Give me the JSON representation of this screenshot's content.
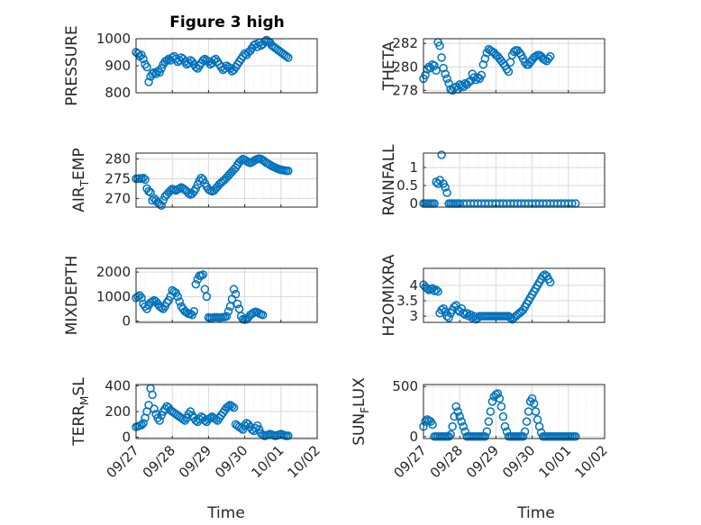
{
  "figure_title": "Figure 3 high",
  "chart_data": [
    {
      "type": "scatter",
      "ylabel": "PRESSURE",
      "title": "Figure 3 high",
      "ylim": [
        800,
        1000
      ],
      "yticks": [
        "1000",
        "900",
        "800"
      ],
      "ytick_values": [
        1000,
        900,
        800
      ],
      "x": [
        0,
        0.05,
        0.1,
        0.15,
        0.2,
        0.25,
        0.3,
        0.35,
        0.4,
        0.45,
        0.5,
        0.55,
        0.6,
        0.65,
        0.7,
        0.75,
        0.8,
        0.85,
        0.9,
        0.95,
        1,
        1.05,
        1.1,
        1.15,
        1.2,
        1.25,
        1.3,
        1.35,
        1.4,
        1.45,
        1.5,
        1.55,
        1.6,
        1.65,
        1.7,
        1.75,
        1.8,
        1.85,
        1.9,
        1.95,
        2,
        2.05,
        2.1,
        2.15,
        2.2,
        2.25,
        2.3,
        2.35,
        2.4,
        2.45,
        2.5,
        2.55,
        2.6,
        2.65,
        2.7,
        2.75,
        2.8,
        2.85,
        2.9,
        2.95,
        3,
        3.05,
        3.1,
        3.15,
        3.2,
        3.25,
        3.3,
        3.35,
        3.4,
        3.45,
        3.5,
        3.55,
        3.6,
        3.65,
        3.7,
        3.75,
        3.8,
        3.85,
        3.9,
        3.95,
        4,
        4.05,
        4.1,
        4.15,
        4.2
      ],
      "y": [
        950,
        945,
        935,
        940,
        925,
        905,
        895,
        840,
        860,
        870,
        875,
        870,
        880,
        875,
        890,
        905,
        915,
        920,
        925,
        920,
        930,
        935,
        925,
        915,
        920,
        930,
        925,
        915,
        905,
        910,
        920,
        915,
        905,
        895,
        890,
        900,
        910,
        920,
        925,
        920,
        915,
        905,
        910,
        920,
        925,
        915,
        905,
        895,
        885,
        890,
        900,
        895,
        890,
        880,
        885,
        895,
        905,
        915,
        925,
        935,
        945,
        940,
        950,
        955,
        965,
        975,
        980,
        970,
        985,
        975,
        980,
        990,
        995,
        990,
        985,
        975,
        970,
        965,
        960,
        955,
        950,
        945,
        940,
        935,
        930
      ]
    },
    {
      "type": "scatter",
      "ylabel": "THETA",
      "ylim": [
        277.8,
        282.4
      ],
      "yticks": [
        "282",
        "280",
        "278"
      ],
      "ytick_values": [
        282,
        280,
        278
      ],
      "x": [
        0,
        0.05,
        0.1,
        0.15,
        0.2,
        0.25,
        0.3,
        0.35,
        0.4,
        0.45,
        0.5,
        0.55,
        0.6,
        0.65,
        0.7,
        0.75,
        0.8,
        0.85,
        0.9,
        0.95,
        1,
        1.05,
        1.1,
        1.15,
        1.2,
        1.25,
        1.3,
        1.35,
        1.4,
        1.45,
        1.5,
        1.55,
        1.6,
        1.65,
        1.7,
        1.75,
        1.8,
        1.85,
        1.9,
        1.95,
        2,
        2.05,
        2.1,
        2.15,
        2.2,
        2.25,
        2.3,
        2.35,
        2.4,
        2.45,
        2.5,
        2.55,
        2.6,
        2.65,
        2.7,
        2.75,
        2.8,
        2.85,
        2.9,
        2.95,
        3,
        3.05,
        3.1,
        3.15,
        3.2,
        3.25,
        3.3,
        3.35,
        3.4,
        3.45,
        3.5
      ],
      "y": [
        279,
        279.3,
        279.8,
        280,
        279.9,
        280.2,
        280.1,
        279.7,
        282.1,
        281.8,
        280.8,
        279.9,
        279.4,
        279,
        278.6,
        278.1,
        278,
        278.2,
        278.3,
        278.1,
        278.5,
        278.4,
        278.3,
        278.6,
        278.5,
        278.7,
        278.8,
        279.4,
        279.1,
        278.9,
        279.1,
        279,
        279.3,
        280.2,
        280.7,
        281.2,
        281.5,
        281.4,
        281.3,
        281.2,
        281,
        280.9,
        280.7,
        280.5,
        280.3,
        280.1,
        279.8,
        279.6,
        280.4,
        281,
        281.3,
        281.4,
        281.4,
        281.2,
        281,
        280.7,
        280.4,
        280.2,
        280.2,
        280.4,
        280.6,
        280.8,
        280.9,
        281,
        281,
        280.9,
        280.7,
        280.6,
        280.5,
        280.7,
        280.9
      ]
    },
    {
      "type": "scatter",
      "ylabel": "AIRTEMP",
      "ylim": [
        267.8,
        281.5
      ],
      "yticks": [
        "280",
        "275",
        "270"
      ],
      "ytick_values": [
        280,
        275,
        270
      ],
      "x": [
        0,
        0.05,
        0.1,
        0.15,
        0.2,
        0.25,
        0.3,
        0.35,
        0.4,
        0.45,
        0.5,
        0.55,
        0.6,
        0.65,
        0.7,
        0.75,
        0.8,
        0.85,
        0.9,
        0.95,
        1,
        1.05,
        1.1,
        1.15,
        1.2,
        1.25,
        1.3,
        1.35,
        1.4,
        1.45,
        1.5,
        1.55,
        1.6,
        1.65,
        1.7,
        1.75,
        1.8,
        1.85,
        1.9,
        1.95,
        2,
        2.05,
        2.1,
        2.15,
        2.2,
        2.25,
        2.3,
        2.35,
        2.4,
        2.45,
        2.5,
        2.55,
        2.6,
        2.65,
        2.7,
        2.75,
        2.8,
        2.85,
        2.9,
        2.95,
        3,
        3.05,
        3.1,
        3.15,
        3.2,
        3.25,
        3.3,
        3.35,
        3.4,
        3.45,
        3.5,
        3.55,
        3.6,
        3.65,
        3.7,
        3.75,
        3.8,
        3.85,
        3.9,
        3.95,
        4,
        4.05,
        4.1,
        4.15,
        4.2
      ],
      "y": [
        275,
        275,
        275.1,
        275,
        275.2,
        274.8,
        272.5,
        271.8,
        271.5,
        269.5,
        270,
        269.5,
        269,
        268.6,
        268.2,
        269.5,
        270.5,
        271,
        271.5,
        272,
        272.4,
        272.2,
        272,
        272.3,
        272.5,
        272.8,
        272.5,
        272.2,
        271.8,
        271.3,
        271,
        271.2,
        271.8,
        272.5,
        273.5,
        274.5,
        275.2,
        274.8,
        273.8,
        273,
        272.3,
        272,
        271.8,
        272,
        272.5,
        273,
        273.6,
        274,
        274.4,
        274.8,
        275.3,
        275.8,
        276.3,
        276.8,
        277.3,
        277.8,
        278.5,
        279.2,
        279.6,
        280,
        279.8,
        279.5,
        279.2,
        279,
        279.2,
        279.5,
        279.8,
        280,
        280.1,
        280,
        279.7,
        279.4,
        279,
        278.8,
        278.5,
        278.2,
        278,
        277.8,
        277.6,
        277.4,
        277.3,
        277.2,
        277.1,
        277,
        277
      ]
    },
    {
      "type": "scatter",
      "ylabel": "RAINFALL",
      "ylim": [
        -0.1,
        1.4
      ],
      "yticks": [
        "1",
        "0.5",
        "0"
      ],
      "ytick_values": [
        1,
        0.5,
        0
      ],
      "x": [
        0,
        0.05,
        0.1,
        0.15,
        0.2,
        0.25,
        0.3,
        0.35,
        0.4,
        0.45,
        0.5,
        0.55,
        0.6,
        0.65,
        0.7,
        0.75,
        0.8,
        0.85,
        0.9,
        0.95,
        1,
        1.1,
        1.2,
        1.3,
        1.4,
        1.5,
        1.6,
        1.7,
        1.8,
        1.9,
        2,
        2.1,
        2.2,
        2.3,
        2.4,
        2.5,
        2.6,
        2.7,
        2.8,
        2.9,
        3,
        3.1,
        3.2,
        3.3,
        3.4,
        3.5,
        3.6,
        3.7,
        3.8,
        3.9,
        4,
        4.1,
        4.2
      ],
      "y": [
        0,
        0,
        0,
        0,
        0,
        0,
        0,
        0.6,
        0.55,
        0.65,
        1.35,
        0.55,
        0.45,
        0.3,
        0,
        0,
        0,
        0,
        0,
        0,
        0,
        0,
        0,
        0,
        0,
        0,
        0,
        0,
        0,
        0,
        0,
        0,
        0,
        0,
        0,
        0,
        0,
        0,
        0,
        0,
        0,
        0,
        0,
        0,
        0,
        0,
        0,
        0,
        0,
        0,
        0,
        0,
        0
      ]
    },
    {
      "type": "scatter",
      "ylabel": "MIXDEPTH",
      "ylim": [
        -50,
        2150
      ],
      "yticks": [
        "2000",
        "1000",
        "0"
      ],
      "ytick_values": [
        2000,
        1000,
        0
      ],
      "x": [
        0,
        0.05,
        0.1,
        0.15,
        0.2,
        0.25,
        0.3,
        0.35,
        0.4,
        0.45,
        0.5,
        0.55,
        0.6,
        0.65,
        0.7,
        0.75,
        0.8,
        0.85,
        0.9,
        0.95,
        1,
        1.05,
        1.1,
        1.15,
        1.2,
        1.25,
        1.3,
        1.35,
        1.4,
        1.45,
        1.5,
        1.55,
        1.6,
        1.65,
        1.7,
        1.75,
        1.8,
        1.85,
        1.9,
        1.95,
        2,
        2.05,
        2.1,
        2.15,
        2.2,
        2.25,
        2.3,
        2.35,
        2.4,
        2.45,
        2.5,
        2.55,
        2.6,
        2.65,
        2.7,
        2.75,
        2.8,
        2.85,
        2.9,
        2.95,
        3,
        3.05,
        3.1,
        3.15,
        3.2,
        3.25,
        3.3,
        3.35,
        3.4,
        3.45,
        3.5
      ],
      "y": [
        950,
        1000,
        1050,
        950,
        700,
        600,
        500,
        650,
        750,
        800,
        850,
        800,
        700,
        600,
        550,
        500,
        600,
        750,
        850,
        1000,
        1250,
        1200,
        1150,
        1000,
        800,
        600,
        500,
        400,
        350,
        300,
        300,
        250,
        400,
        1500,
        1700,
        1850,
        1850,
        1900,
        1300,
        1000,
        150,
        130,
        140,
        150,
        160,
        150,
        140,
        150,
        160,
        170,
        200,
        400,
        600,
        900,
        1300,
        1100,
        700,
        500,
        200,
        80,
        60,
        80,
        150,
        250,
        300,
        350,
        380,
        360,
        320,
        280,
        250
      ]
    },
    {
      "type": "scatter",
      "ylabel": "H2OMIXRA",
      "ylim": [
        2.8,
        4.55
      ],
      "yticks": [
        "4",
        "3.5",
        "3"
      ],
      "ytick_values": [
        4,
        3.5,
        3
      ],
      "x": [
        0,
        0.05,
        0.1,
        0.15,
        0.2,
        0.25,
        0.3,
        0.35,
        0.4,
        0.45,
        0.5,
        0.55,
        0.6,
        0.65,
        0.7,
        0.75,
        0.8,
        0.85,
        0.9,
        0.95,
        1,
        1.05,
        1.1,
        1.15,
        1.2,
        1.25,
        1.3,
        1.35,
        1.4,
        1.45,
        1.5,
        1.55,
        1.6,
        1.65,
        1.7,
        1.75,
        1.8,
        1.85,
        1.9,
        1.95,
        2,
        2.05,
        2.1,
        2.15,
        2.2,
        2.25,
        2.3,
        2.35,
        2.4,
        2.45,
        2.5,
        2.55,
        2.6,
        2.65,
        2.7,
        2.75,
        2.8,
        2.85,
        2.9,
        2.95,
        3,
        3.05,
        3.1,
        3.15,
        3.2,
        3.25,
        3.3,
        3.35,
        3.4,
        3.45,
        3.5
      ],
      "y": [
        4.02,
        3.95,
        3.9,
        3.85,
        3.88,
        3.9,
        3.82,
        3.85,
        3.8,
        3.1,
        3.2,
        3.25,
        3.15,
        3,
        2.95,
        3.1,
        3.2,
        3.3,
        3.35,
        3.2,
        3.15,
        3.25,
        3.1,
        3.05,
        3.1,
        3,
        3.05,
        2.95,
        3,
        2.9,
        2.95,
        3,
        3,
        3,
        3,
        3,
        3,
        3,
        3,
        3,
        3,
        3,
        3,
        3,
        3,
        3,
        3,
        3,
        2.95,
        2.9,
        2.95,
        3,
        3.05,
        3.1,
        3.15,
        3.2,
        3.3,
        3.4,
        3.5,
        3.6,
        3.7,
        3.8,
        3.9,
        4,
        4.1,
        4.2,
        4.3,
        4.35,
        4.3,
        4.2,
        4.1
      ]
    },
    {
      "type": "scatter",
      "ylabel": "TERRMSL",
      "ylim": [
        -10,
        410
      ],
      "yticks": [
        "400",
        "200",
        "0"
      ],
      "ytick_values": [
        400,
        200,
        0
      ],
      "x": [
        0,
        0.05,
        0.1,
        0.15,
        0.2,
        0.25,
        0.3,
        0.35,
        0.4,
        0.45,
        0.5,
        0.55,
        0.6,
        0.65,
        0.7,
        0.75,
        0.8,
        0.85,
        0.9,
        0.95,
        1,
        1.05,
        1.1,
        1.15,
        1.2,
        1.25,
        1.3,
        1.35,
        1.4,
        1.45,
        1.5,
        1.55,
        1.6,
        1.65,
        1.7,
        1.75,
        1.8,
        1.85,
        1.9,
        1.95,
        2,
        2.05,
        2.1,
        2.15,
        2.2,
        2.25,
        2.3,
        2.35,
        2.4,
        2.45,
        2.5,
        2.55,
        2.6,
        2.65,
        2.7,
        2.75,
        2.8,
        2.85,
        2.9,
        2.95,
        3,
        3.05,
        3.1,
        3.15,
        3.2,
        3.25,
        3.3,
        3.35,
        3.4,
        3.45,
        3.5,
        3.55,
        3.6,
        3.65,
        3.7,
        3.75,
        3.8,
        3.85,
        3.9,
        3.95,
        4,
        4.05,
        4.1,
        4.15,
        4.2
      ],
      "y": [
        80,
        85,
        90,
        95,
        110,
        150,
        200,
        250,
        380,
        330,
        220,
        180,
        150,
        130,
        170,
        200,
        220,
        240,
        230,
        210,
        200,
        190,
        180,
        170,
        160,
        150,
        140,
        130,
        150,
        180,
        200,
        170,
        150,
        130,
        120,
        140,
        160,
        150,
        130,
        120,
        140,
        150,
        160,
        150,
        140,
        130,
        150,
        170,
        190,
        210,
        230,
        240,
        250,
        240,
        230,
        100,
        90,
        80,
        70,
        60,
        90,
        110,
        100,
        80,
        60,
        50,
        70,
        90,
        60,
        30,
        20,
        10,
        15,
        20,
        25,
        20,
        15,
        10,
        15,
        20,
        25,
        20,
        15,
        10,
        12
      ]
    },
    {
      "type": "scatter",
      "ylabel": "SUNFLUX",
      "ylim": [
        -20,
        520
      ],
      "yticks": [
        "500",
        "0"
      ],
      "ytick_values": [
        500,
        0
      ],
      "x": [
        0,
        0.05,
        0.1,
        0.15,
        0.2,
        0.25,
        0.3,
        0.35,
        0.4,
        0.45,
        0.5,
        0.55,
        0.6,
        0.65,
        0.7,
        0.75,
        0.8,
        0.85,
        0.9,
        0.95,
        1,
        1.05,
        1.1,
        1.15,
        1.2,
        1.25,
        1.3,
        1.35,
        1.4,
        1.45,
        1.5,
        1.55,
        1.6,
        1.65,
        1.7,
        1.75,
        1.8,
        1.85,
        1.9,
        1.95,
        2,
        2.05,
        2.1,
        2.15,
        2.2,
        2.25,
        2.3,
        2.35,
        2.4,
        2.45,
        2.5,
        2.55,
        2.6,
        2.65,
        2.7,
        2.75,
        2.8,
        2.85,
        2.9,
        2.95,
        3,
        3.05,
        3.1,
        3.15,
        3.2,
        3.25,
        3.3,
        3.35,
        3.4,
        3.45,
        3.5,
        3.55,
        3.6,
        3.65,
        3.7,
        3.75,
        3.8,
        3.85,
        3.9,
        3.95,
        4,
        4.05,
        4.1,
        4.15,
        4.2
      ],
      "y": [
        100,
        150,
        170,
        160,
        150,
        120,
        0,
        0,
        0,
        0,
        0,
        0,
        0,
        0,
        0,
        20,
        100,
        200,
        300,
        250,
        200,
        150,
        100,
        50,
        0,
        0,
        0,
        0,
        0,
        0,
        0,
        0,
        0,
        0,
        0,
        50,
        150,
        250,
        350,
        400,
        420,
        430,
        380,
        300,
        200,
        100,
        50,
        0,
        0,
        0,
        0,
        0,
        0,
        0,
        0,
        0,
        50,
        150,
        250,
        350,
        380,
        330,
        250,
        170,
        100,
        40,
        0,
        0,
        0,
        0,
        0,
        0,
        0,
        0,
        0,
        0,
        0,
        0,
        0,
        0,
        0,
        0,
        0,
        0,
        0
      ]
    }
  ],
  "x_axis": {
    "label": "Time",
    "range": [
      0,
      5
    ],
    "tick_values": [
      0,
      1,
      2,
      3,
      4,
      5
    ],
    "tick_labels": [
      "09/27",
      "09/28",
      "09/29",
      "09/30",
      "10/01",
      "10/02"
    ]
  },
  "ylabel_parts": {
    "airtemp": {
      "pre": "AIR",
      "sub": "T",
      "post": "EMP"
    },
    "terrmsl": {
      "pre": "TERR",
      "sub": "M",
      "post": "SL"
    },
    "sunflux": {
      "pre": "SUN",
      "sub": "F",
      "post": "LUX"
    }
  },
  "colors": {
    "marker": "#0072bd",
    "grid": "#d9d9d9",
    "axis": "#262626",
    "background": "#ffffff"
  }
}
